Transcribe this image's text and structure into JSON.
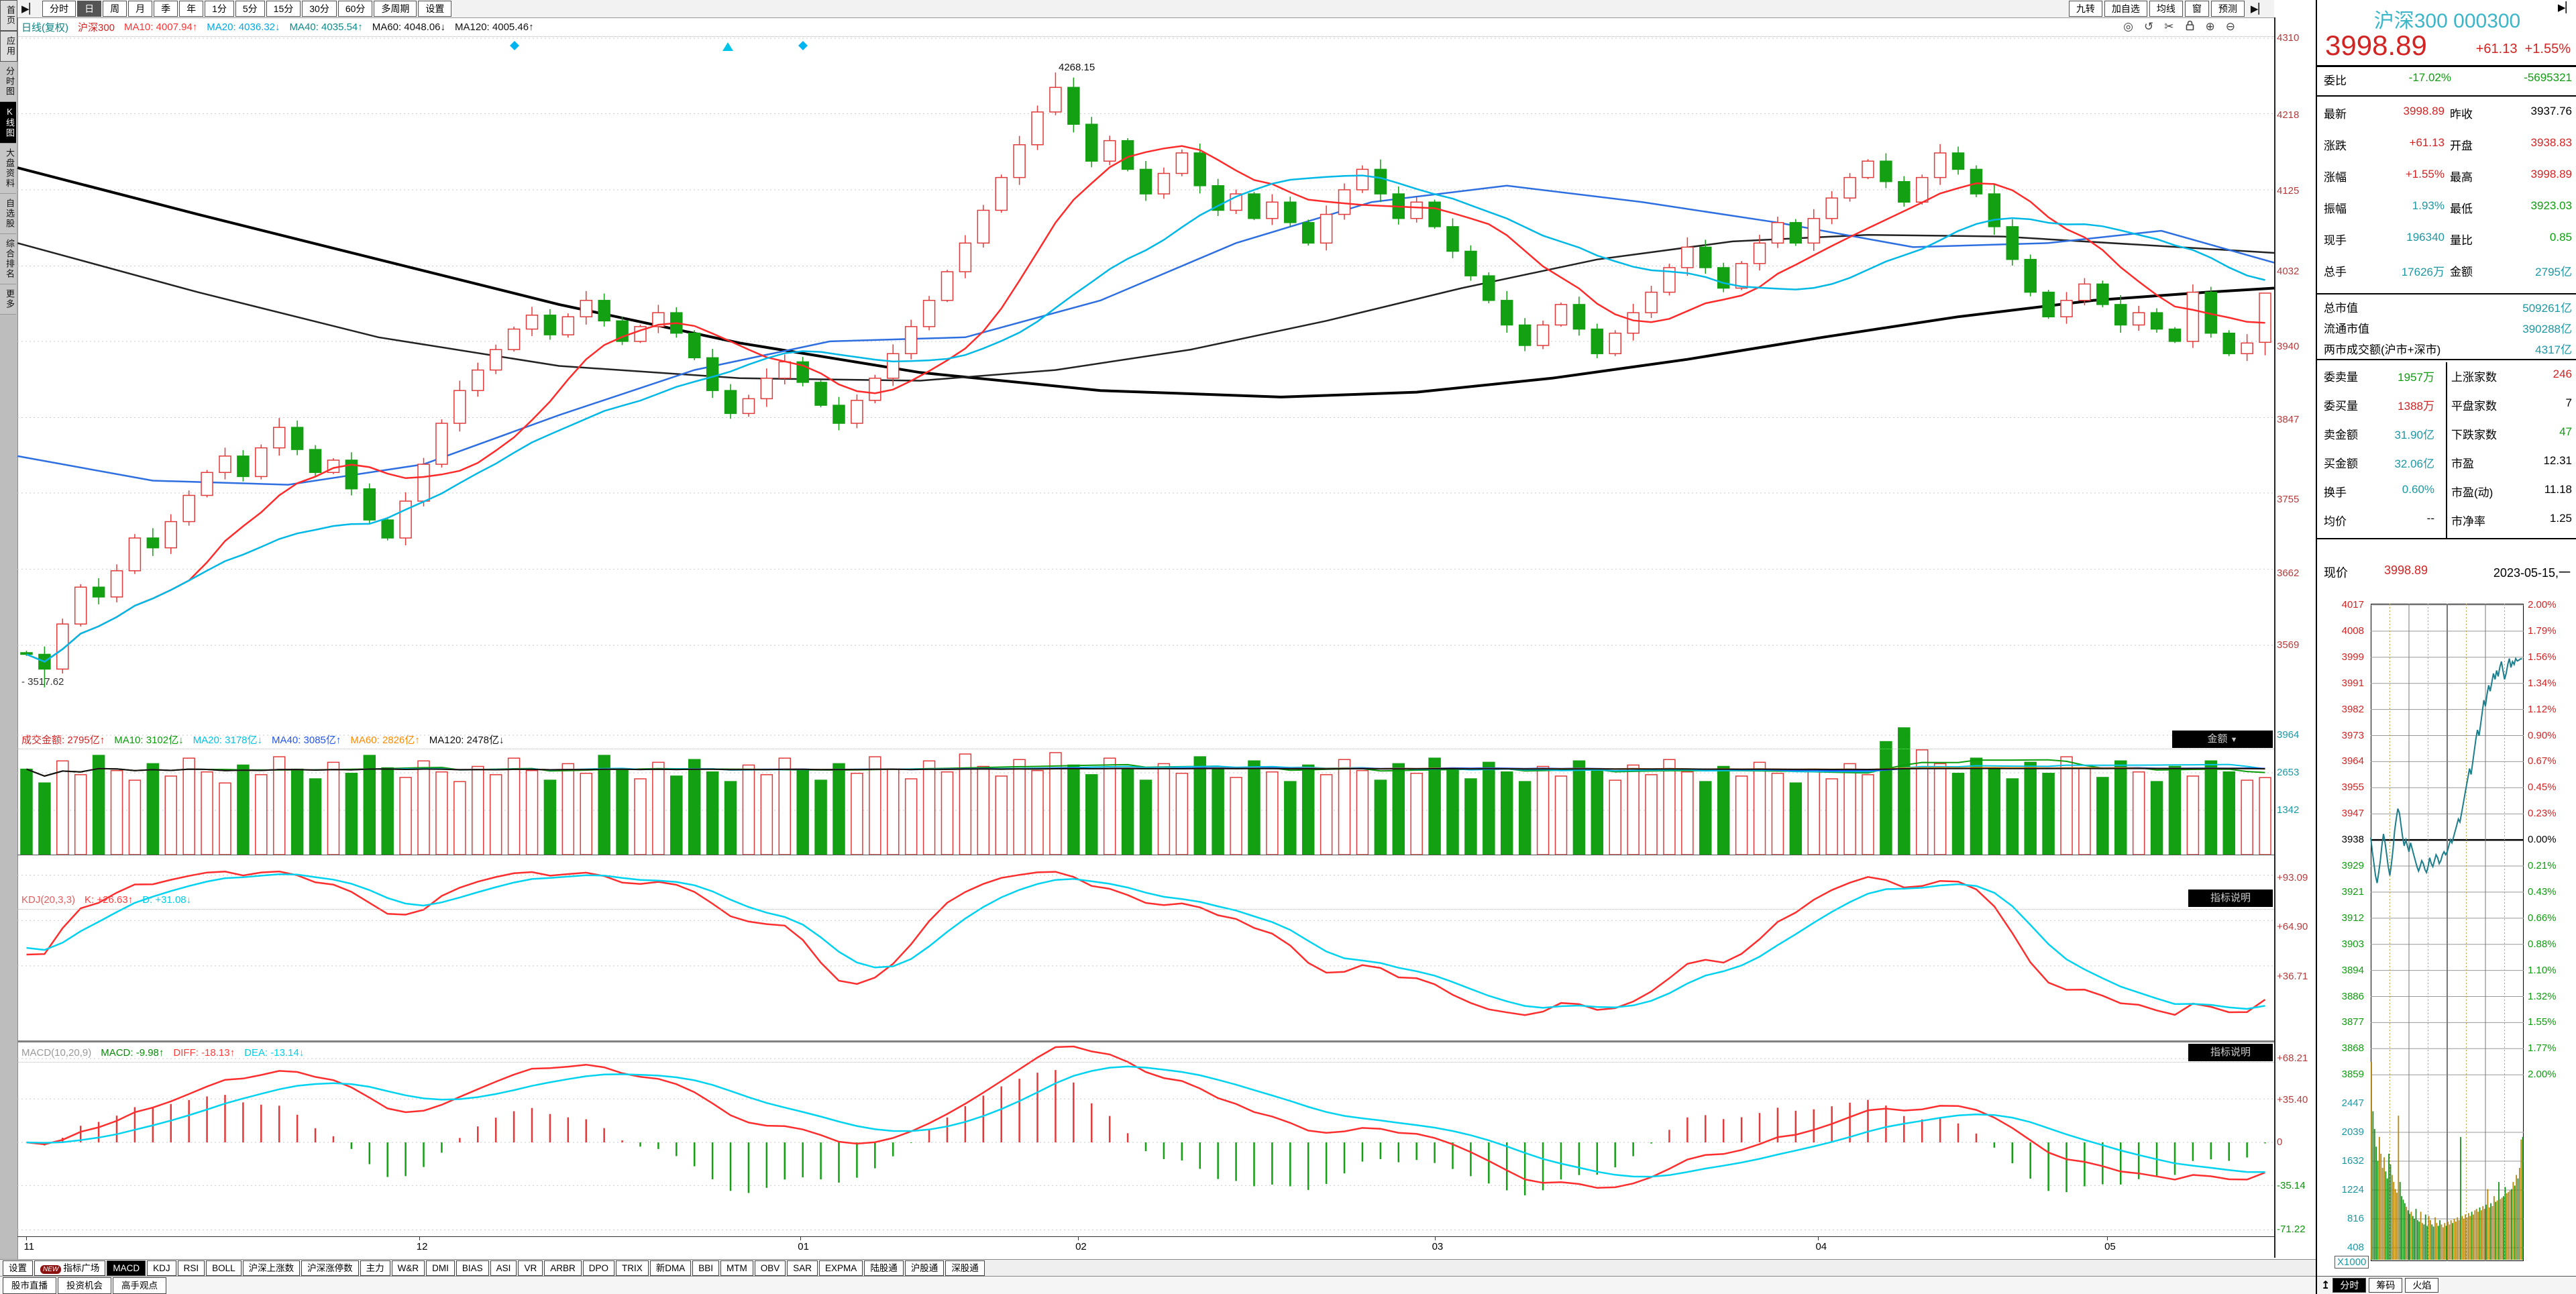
{
  "colors": {
    "red": "#d32424",
    "green": "#0f9d0f",
    "teal": "#1d98a3",
    "title_cyan": "#3ab6c8",
    "axis_red": "#b43c3c",
    "axis_green": "#0d930d",
    "up_candle": "#e23a3a",
    "down_candle": "#13a013",
    "kline_k": "#ff2e2e",
    "kline_d": "#00d2f0",
    "intraday_line": "#1b7e8c",
    "vol_up_bar": "#b8860b",
    "vol_down_bar": "#18921b"
  },
  "toolbar": {
    "period_tabs": [
      "分时",
      "日",
      "周",
      "月",
      "季",
      "年",
      "1分",
      "5分",
      "15分",
      "30分",
      "60分",
      "多周期",
      "设置"
    ],
    "selected": "日",
    "right_buttons": [
      "九转",
      "加自选",
      "均线",
      "窗",
      "预测"
    ]
  },
  "sidebar": {
    "items": [
      "首页",
      "应用",
      "分时图",
      "K线图",
      "大盘资料",
      "自选股",
      "综合排名",
      "更多"
    ],
    "selected": "K线图"
  },
  "main_header": {
    "period": "日线(复权)",
    "symbol": "沪深300",
    "mas": [
      {
        "label": "MA10:",
        "value": "4007.94↑",
        "color": "#ff3333"
      },
      {
        "label": "MA20:",
        "value": "4036.32↓",
        "color": "#00a8e8"
      },
      {
        "label": "MA40:",
        "value": "4035.54↑",
        "color": "#0d8a8a"
      },
      {
        "label": "MA60:",
        "value": "4048.06↓",
        "color": "#111111"
      },
      {
        "label": "MA120:",
        "value": "4005.46↑",
        "color": "#111111"
      }
    ]
  },
  "vol_header": {
    "name": "成交金额:",
    "value": "2795亿↑",
    "mas": [
      {
        "label": "MA10:",
        "value": "3102亿↓",
        "color": "#0a9c0a"
      },
      {
        "label": "MA20:",
        "value": "3178亿↓",
        "color": "#00c3e6"
      },
      {
        "label": "MA40:",
        "value": "3085亿↑",
        "color": "#2255ee"
      },
      {
        "label": "MA60:",
        "value": "2826亿↑",
        "color": "#ff8a00"
      },
      {
        "label": "MA120:",
        "value": "2478亿↓",
        "color": "#111111"
      }
    ],
    "dropdown": "金额"
  },
  "kdj_header": {
    "name": "KDJ(20,3,3)",
    "items": [
      {
        "label": "K:",
        "value": "+26.63↑",
        "color": "#ff3b3b"
      },
      {
        "label": "D:",
        "value": "+31.08↓",
        "color": "#00cfe8"
      }
    ],
    "note": "指标说明"
  },
  "macd_header": {
    "name": "MACD(10,20,9)",
    "items": [
      {
        "label": "MACD:",
        "value": "-9.98↑",
        "color": "#0a8a0a"
      },
      {
        "label": "DIFF:",
        "value": "-18.13↑",
        "color": "#ff3b3b"
      },
      {
        "label": "DEA:",
        "value": "-13.14↓",
        "color": "#00cfe8"
      }
    ],
    "note": "指标说明"
  },
  "bottom_tabs": {
    "row1": [
      "设置",
      "指标广场",
      "MACD",
      "KDJ",
      "RSI",
      "BOLL",
      "沪深上涨数",
      "沪深涨停数",
      "主力",
      "W&R",
      "DMI",
      "BIAS",
      "ASI",
      "VR",
      "ARBR",
      "DPO",
      "TRIX",
      "新DMA",
      "BBI",
      "MTM",
      "OBV",
      "SAR",
      "EXPMA",
      "陆股通",
      "沪股通",
      "深股通"
    ],
    "selected": "MACD",
    "new_badge_on": "指标广场",
    "row2": [
      "股市直播",
      "投资机会",
      "高手观点"
    ]
  },
  "right_panel": {
    "title": "沪深300 000300",
    "price": "3998.89",
    "change": "+61.13",
    "change_pct": "+1.55%",
    "weibi": {
      "label": "委比",
      "pct": "-17.02%",
      "diff": "-5695321"
    },
    "rows_a": [
      {
        "l1": "最新",
        "v1": "3998.89",
        "c1": "red",
        "l2": "昨收",
        "v2": "3937.76",
        "c2": "black"
      },
      {
        "l1": "涨跌",
        "v1": "+61.13",
        "c1": "red",
        "l2": "开盘",
        "v2": "3938.83",
        "c2": "red"
      },
      {
        "l1": "涨幅",
        "v1": "+1.55%",
        "c1": "red",
        "l2": "最高",
        "v2": "3998.89",
        "c2": "red"
      },
      {
        "l1": "振幅",
        "v1": "1.93%",
        "c1": "teal",
        "l2": "最低",
        "v2": "3923.03",
        "c2": "green"
      },
      {
        "l1": "现手",
        "v1": "196340",
        "c1": "teal",
        "l2": "量比",
        "v2": "0.85",
        "c2": "green"
      },
      {
        "l1": "总手",
        "v1": "17626万",
        "c1": "teal",
        "l2": "金额",
        "v2": "2795亿",
        "c2": "teal"
      }
    ],
    "rows_b": [
      {
        "label": "总市值",
        "value": "509261亿"
      },
      {
        "label": "流通市值",
        "value": "390288亿"
      },
      {
        "label": "两市成交额(沪市+深市)",
        "value": "4317亿"
      }
    ],
    "rows_c": [
      {
        "l1": "委卖量",
        "v1": "1957万",
        "c1": "green",
        "l2": "上涨家数",
        "v2": "246",
        "c2": "red"
      },
      {
        "l1": "委买量",
        "v1": "1388万",
        "c1": "red",
        "l2": "平盘家数",
        "v2": "7",
        "c2": "black"
      },
      {
        "l1": "卖金额",
        "v1": "31.90亿",
        "c1": "teal",
        "l2": "下跌家数",
        "v2": "47",
        "c2": "green"
      },
      {
        "l1": "买金额",
        "v1": "32.06亿",
        "c1": "teal",
        "l2": "市盈",
        "v2": "12.31",
        "c2": "black"
      },
      {
        "l1": "换手",
        "v1": "0.60%",
        "c1": "teal",
        "l2": "市盈(动)",
        "v2": "11.18",
        "c2": "black"
      },
      {
        "l1": "均价",
        "v1": "--",
        "c1": "black",
        "l2": "市净率",
        "v2": "1.25",
        "c2": "black"
      }
    ],
    "now_row": {
      "label": "现价",
      "value": "3998.89",
      "date": "2023-05-15,一"
    },
    "mini_tabs": [
      "分时",
      "筹码",
      "火焰"
    ],
    "mini_selected": "分时"
  },
  "chart_data": {
    "type": "candlestick",
    "title": "沪深300 日线(复权)",
    "x_months": [
      {
        "label": "11",
        "f": 0.004
      },
      {
        "label": "12",
        "f": 0.178
      },
      {
        "label": "01",
        "f": 0.347
      },
      {
        "label": "02",
        "f": 0.47
      },
      {
        "label": "03",
        "f": 0.628
      },
      {
        "label": "04",
        "f": 0.798
      },
      {
        "label": "05",
        "f": 0.926
      }
    ],
    "y_axis": {
      "main": [
        4310,
        4218,
        4125,
        4032,
        3940,
        3847,
        3755,
        3662,
        3569
      ],
      "volume": [
        3964,
        2653,
        1342
      ],
      "kdj": [
        93.09,
        64.9,
        36.71
      ],
      "macd": [
        "+68.21",
        "+35.40",
        "0",
        "-35.14",
        "-71.22"
      ]
    },
    "annotations": {
      "high_marker": "4268.15",
      "low_marker": "3517.62"
    },
    "closes": [
      3558,
      3540,
      3595,
      3640,
      3628,
      3660,
      3700,
      3688,
      3720,
      3752,
      3780,
      3800,
      3775,
      3810,
      3835,
      3808,
      3780,
      3795,
      3760,
      3722,
      3700,
      3745,
      3790,
      3840,
      3880,
      3905,
      3930,
      3955,
      3972,
      3948,
      3970,
      3990,
      3965,
      3940,
      3958,
      3975,
      3950,
      3920,
      3880,
      3852,
      3870,
      3895,
      3915,
      3890,
      3862,
      3840,
      3868,
      3895,
      3925,
      3958,
      3990,
      4025,
      4060,
      4100,
      4140,
      4180,
      4220,
      4250,
      4205,
      4160,
      4185,
      4150,
      4120,
      4145,
      4170,
      4130,
      4100,
      4120,
      4090,
      4110,
      4085,
      4060,
      4095,
      4125,
      4150,
      4120,
      4090,
      4110,
      4080,
      4050,
      4020,
      3990,
      3960,
      3935,
      3960,
      3985,
      3955,
      3925,
      3950,
      3975,
      4000,
      4030,
      4055,
      4030,
      4005,
      4035,
      4060,
      4085,
      4060,
      4090,
      4115,
      4140,
      4160,
      4135,
      4110,
      4140,
      4170,
      4150,
      4120,
      4080,
      4040,
      4000,
      3970,
      3990,
      4010,
      3985,
      3960,
      3975,
      3955,
      3940,
      4000,
      3950,
      3925,
      3938,
      3998.89
    ],
    "special": {
      "low_index": 1,
      "low_value": 3517.62,
      "high_index": 57,
      "high_value": 4268.15,
      "last_open": 3938.83,
      "last_low": 3923.03
    },
    "ma40_path": [
      [
        0,
        3800
      ],
      [
        0.06,
        3770
      ],
      [
        0.12,
        3765
      ],
      [
        0.18,
        3790
      ],
      [
        0.24,
        3850
      ],
      [
        0.3,
        3905
      ],
      [
        0.36,
        3940
      ],
      [
        0.42,
        3945
      ],
      [
        0.48,
        3990
      ],
      [
        0.54,
        4060
      ],
      [
        0.6,
        4110
      ],
      [
        0.66,
        4130
      ],
      [
        0.72,
        4110
      ],
      [
        0.78,
        4085
      ],
      [
        0.84,
        4055
      ],
      [
        0.9,
        4060
      ],
      [
        0.95,
        4075
      ],
      [
        1,
        4036
      ]
    ],
    "ma60_path": [
      [
        0,
        4060
      ],
      [
        0.08,
        4000
      ],
      [
        0.16,
        3945
      ],
      [
        0.24,
        3910
      ],
      [
        0.32,
        3895
      ],
      [
        0.4,
        3892
      ],
      [
        0.46,
        3905
      ],
      [
        0.52,
        3930
      ],
      [
        0.58,
        3965
      ],
      [
        0.64,
        4005
      ],
      [
        0.7,
        4040
      ],
      [
        0.76,
        4062
      ],
      [
        0.82,
        4070
      ],
      [
        0.88,
        4068
      ],
      [
        0.94,
        4058
      ],
      [
        1,
        4048
      ]
    ],
    "ma120_path": [
      [
        0,
        4152
      ],
      [
        0.08,
        4095
      ],
      [
        0.16,
        4040
      ],
      [
        0.24,
        3985
      ],
      [
        0.32,
        3938
      ],
      [
        0.4,
        3902
      ],
      [
        0.48,
        3880
      ],
      [
        0.56,
        3872
      ],
      [
        0.62,
        3878
      ],
      [
        0.68,
        3895
      ],
      [
        0.74,
        3918
      ],
      [
        0.8,
        3945
      ],
      [
        0.86,
        3970
      ],
      [
        0.92,
        3990
      ],
      [
        0.97,
        4000
      ],
      [
        1,
        4005
      ]
    ],
    "volumes": [
      3100,
      2600,
      3400,
      2900,
      3600,
      3050,
      2700,
      3300,
      2850,
      3500,
      3000,
      2600,
      3250,
      2900,
      3550,
      3100,
      2750,
      3350,
      2950,
      3600,
      3150,
      2800,
      3400,
      3000,
      2650,
      3200,
      2900,
      3500,
      3050,
      2700,
      3300,
      2950,
      3600,
      3100,
      2750,
      3350,
      2850,
      3450,
      3000,
      2650,
      3250,
      2900,
      3500,
      3050,
      2700,
      3300,
      2950,
      3550,
      3100,
      2750,
      3400,
      3000,
      3650,
      3200,
      2850,
      3450,
      3050,
      3700,
      3250,
      2900,
      3500,
      3100,
      2700,
      3300,
      2950,
      3550,
      3150,
      2800,
      3400,
      3000,
      2650,
      3250,
      2900,
      3450,
      3050,
      2700,
      3300,
      2950,
      3500,
      3100,
      2750,
      3350,
      3000,
      2650,
      3200,
      2850,
      3400,
      3050,
      2700,
      3250,
      2900,
      3450,
      3000,
      2650,
      3200,
      2850,
      3350,
      2950,
      2600,
      3100,
      2750,
      3300,
      2900,
      4100,
      4600,
      3800,
      3300,
      2950,
      3500,
      3100,
      2750,
      3350,
      2950,
      3550,
      3150,
      2800,
      3400,
      3000,
      2650,
      3200,
      2850,
      3400,
      3000,
      2700,
      2795
    ],
    "intraday": {
      "prev_close": 3937.76,
      "baseline_label": "3938",
      "price_labels": [
        "4017",
        "4008",
        "3999",
        "3991",
        "3982",
        "3973",
        "3964",
        "3955",
        "3947",
        "3938",
        "3929",
        "3921",
        "3912",
        "3903",
        "3894",
        "3886",
        "3877",
        "3868",
        "3859"
      ],
      "pct_labels": [
        "2.00%",
        "1.79%",
        "1.56%",
        "1.34%",
        "1.12%",
        "0.90%",
        "0.67%",
        "0.45%",
        "0.23%",
        "0.00%",
        "0.21%",
        "0.43%",
        "0.66%",
        "0.88%",
        "1.10%",
        "1.32%",
        "1.55%",
        "1.77%",
        "2.00%"
      ],
      "vol_labels": [
        "2447",
        "2039",
        "1632",
        "1224",
        "816",
        "408"
      ],
      "vol_unit": "X1000",
      "closes": [
        3938.8,
        3934,
        3930,
        3926,
        3923.5,
        3927,
        3931,
        3936,
        3940,
        3937,
        3933,
        3929,
        3926,
        3930,
        3935,
        3941,
        3945,
        3948.5,
        3947,
        3943,
        3939,
        3936,
        3938,
        3936,
        3934,
        3937,
        3935,
        3933,
        3931,
        3929,
        3927.5,
        3929,
        3931,
        3930,
        3928,
        3927,
        3929,
        3932,
        3930,
        3929,
        3931,
        3933,
        3932,
        3930,
        3931,
        3933,
        3934,
        3933,
        3934,
        3936,
        3938,
        3937,
        3939,
        3941,
        3943,
        3945,
        3944,
        3947,
        3950,
        3953,
        3956,
        3959,
        3962,
        3960,
        3964,
        3968,
        3972,
        3975,
        3973,
        3977,
        3981,
        3985,
        3983,
        3987,
        3990,
        3988,
        3991,
        3994,
        3992,
        3995,
        3993,
        3996,
        3998,
        3995,
        3992,
        3994,
        3997,
        3999,
        3996,
        3998,
        3997,
        3999,
        3998.2,
        3998.5,
        3998.9,
        3998.89
      ],
      "volumes": [
        2800,
        2100,
        1850,
        1600,
        1400,
        1737,
        1500,
        1300,
        1450,
        1250,
        1150,
        1500,
        1350,
        1200,
        1100,
        1000,
        950,
        2039,
        1100,
        900,
        850,
        800,
        750,
        700,
        650,
        680,
        620,
        580,
        720,
        560,
        540,
        680,
        520,
        500,
        640,
        480,
        620,
        560,
        500,
        470,
        600,
        520,
        480,
        560,
        500,
        460,
        520,
        480,
        540,
        500,
        560,
        520,
        580,
        540,
        600,
        560,
        1737,
        620,
        580,
        640,
        600,
        660,
        620,
        680,
        640,
        700,
        720,
        680,
        740,
        700,
        760,
        720,
        780,
        1000,
        740,
        800,
        760,
        900,
        820,
        840,
        1100,
        860,
        880,
        900,
        1030,
        940,
        960,
        980,
        1000,
        1100,
        1050,
        1200,
        1150,
        1300,
        1700,
        1737
      ]
    }
  }
}
